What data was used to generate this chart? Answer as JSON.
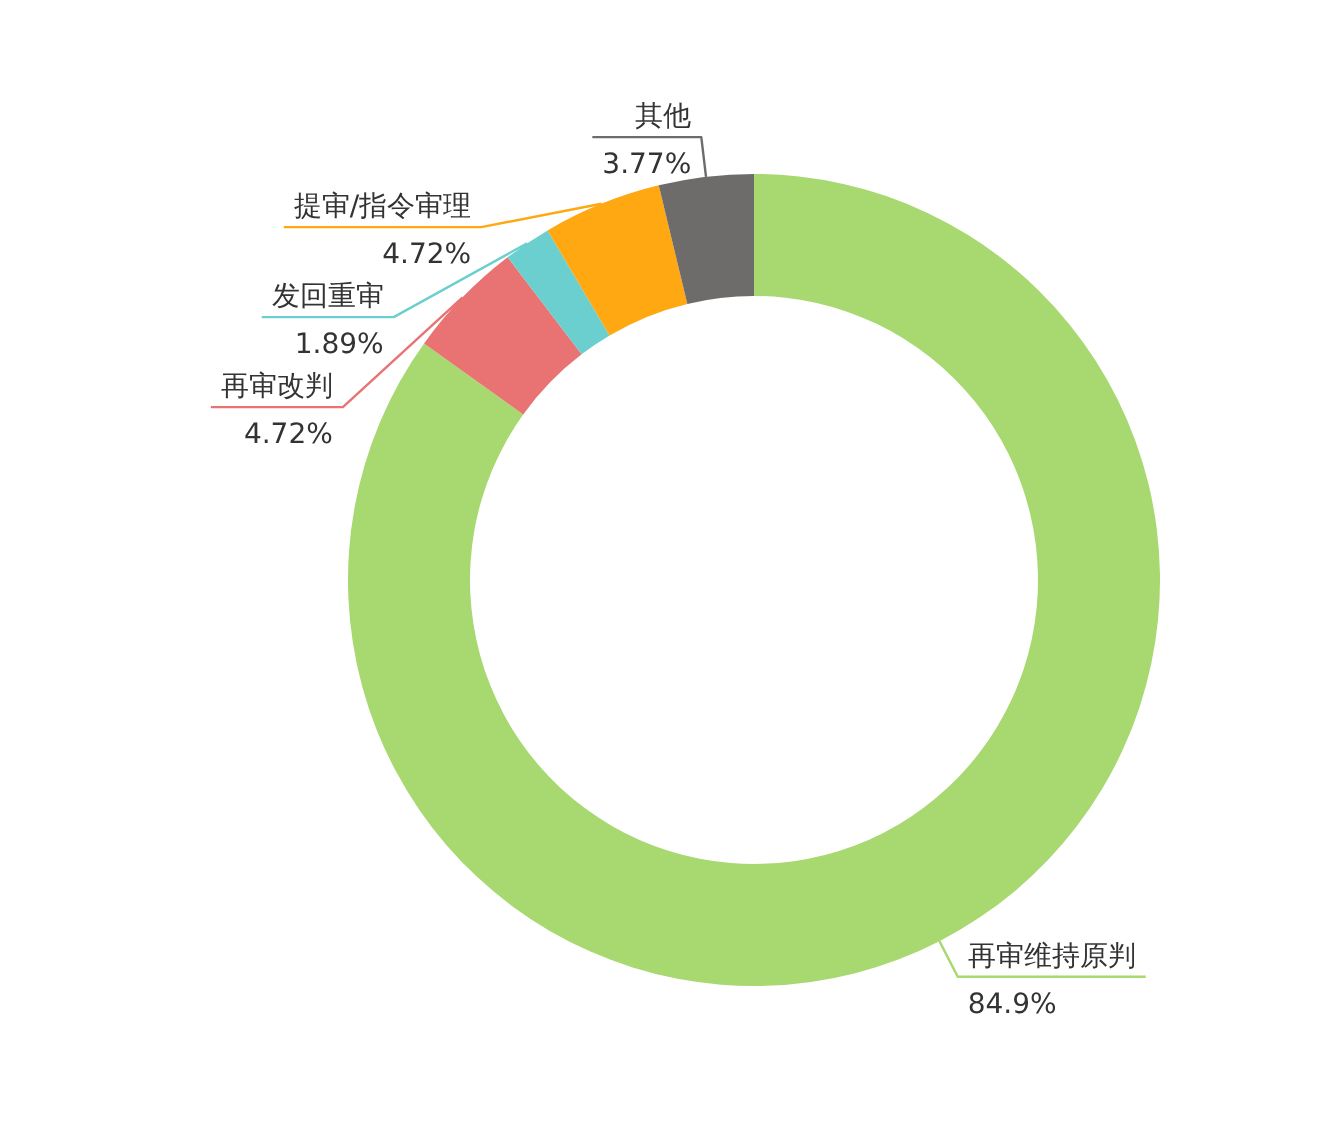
{
  "chart_data": {
    "type": "donut",
    "categories": [
      "再审维持原判",
      "再审改判",
      "发回重审",
      "提审/指令审理",
      "其他"
    ],
    "values": [
      84.9,
      4.72,
      1.89,
      4.72,
      3.77
    ],
    "colors": [
      "#a8d870",
      "#e87372",
      "#6ccfcf",
      "#ffa812",
      "#6e6b6b"
    ],
    "value_labels": [
      "84.9%",
      "4.72%",
      "1.89%",
      "4.72%",
      "3.77%"
    ]
  }
}
